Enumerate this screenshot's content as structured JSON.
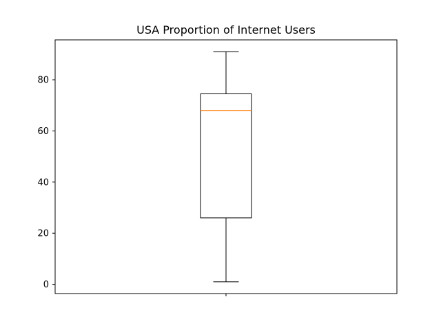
{
  "chart_data": {
    "type": "box",
    "title": "USA Proportion of Internet Users",
    "xlabel": "",
    "ylabel": "",
    "ylim": [
      -3.6,
      95.6
    ],
    "yticks": [
      0,
      20,
      40,
      60,
      80
    ],
    "grid": false,
    "series": [
      {
        "min": 1.0,
        "q1": 26.0,
        "median": 68.0,
        "q3": 74.5,
        "max": 91.0
      }
    ],
    "colors": {
      "box": "#000000",
      "median": "#ff7f0e"
    }
  }
}
